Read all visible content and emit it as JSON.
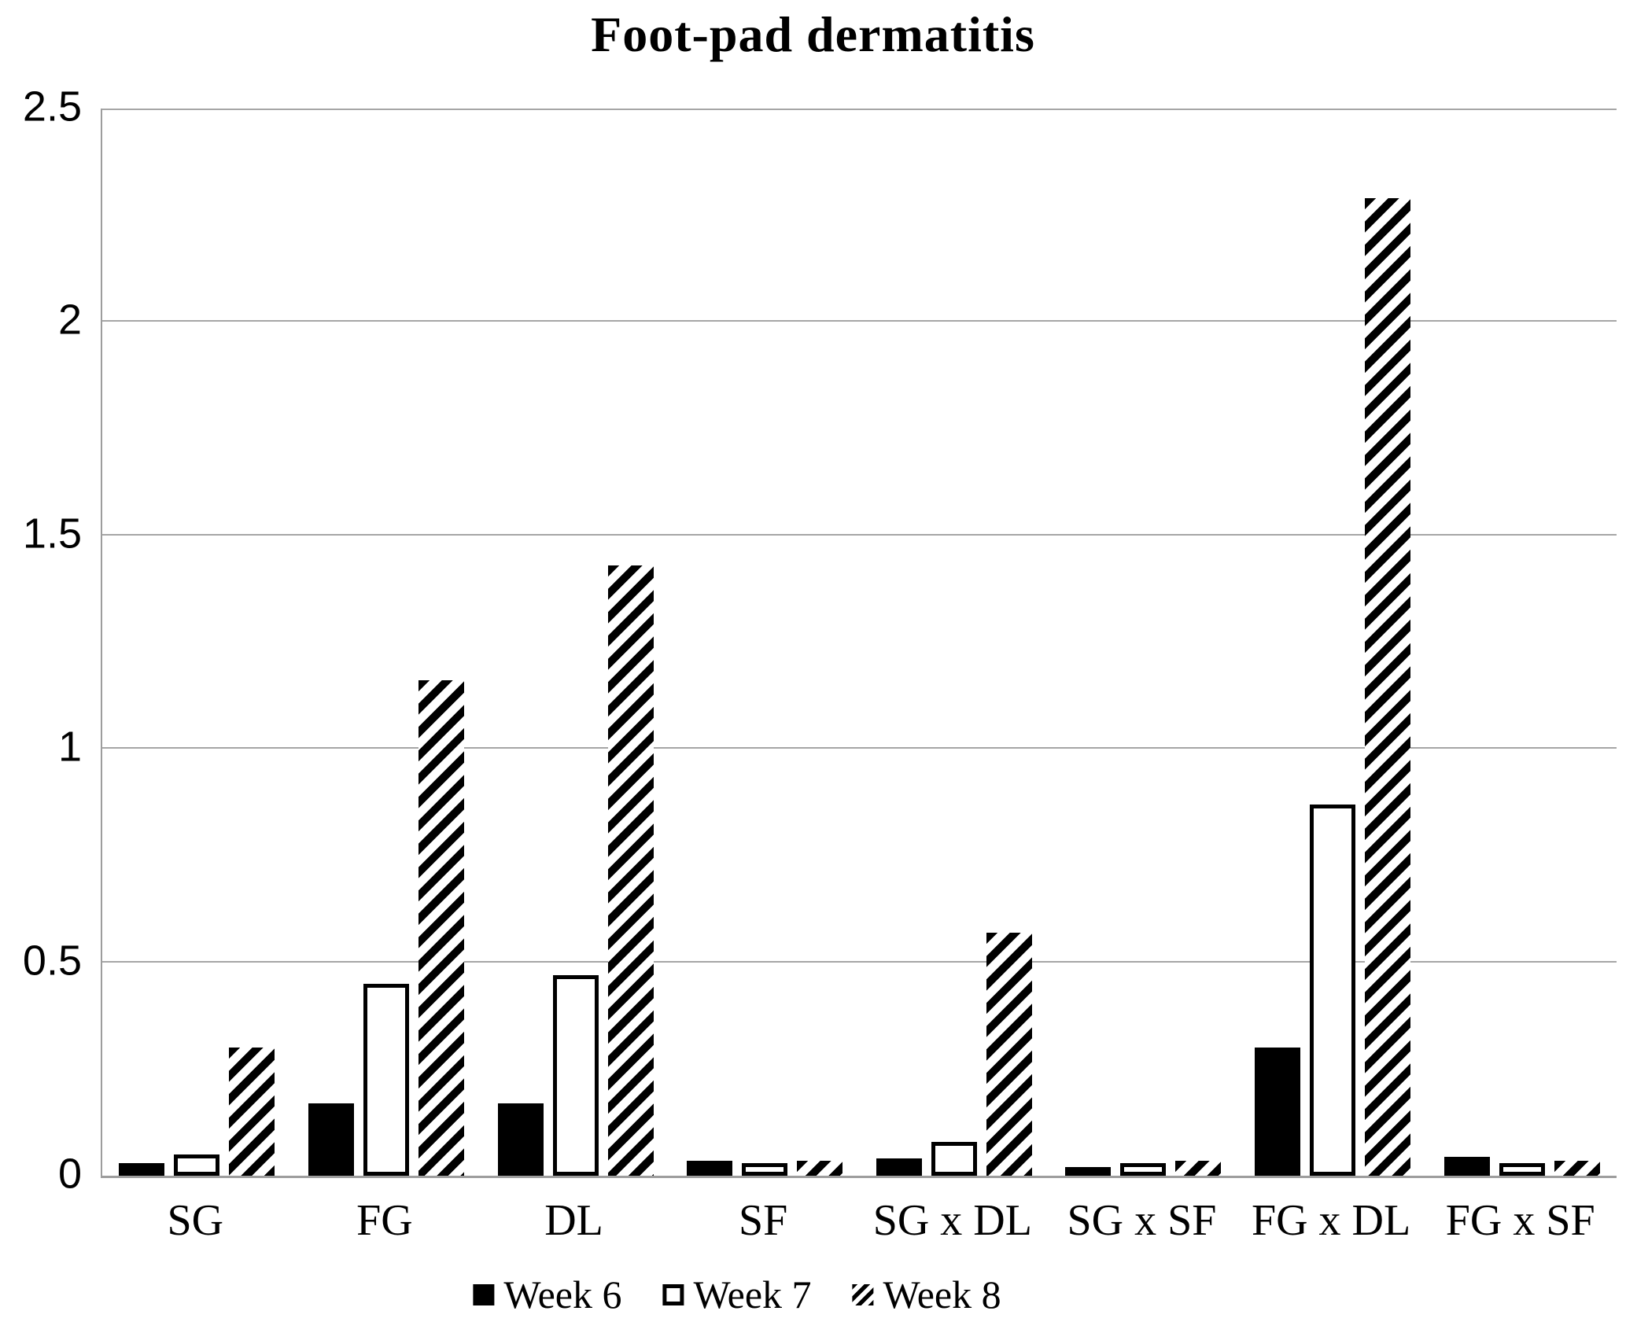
{
  "title": "Foot-pad dermatitis",
  "chart_data": {
    "type": "bar",
    "title": "Foot-pad dermatitis",
    "xlabel": "",
    "ylabel": "",
    "categories": [
      "SG",
      "FG",
      "DL",
      "SF",
      "SG x DL",
      "SG x SF",
      "FG x DL",
      "FG x SF"
    ],
    "series": [
      {
        "name": "Week 6",
        "pattern": "solid-black",
        "values": [
          0.03,
          0.17,
          0.17,
          0.035,
          0.04,
          0.02,
          0.3,
          0.045
        ]
      },
      {
        "name": "Week 7",
        "pattern": "white-outline",
        "values": [
          0.05,
          0.45,
          0.47,
          0.03,
          0.08,
          0.03,
          0.87,
          0.03
        ]
      },
      {
        "name": "Week 8",
        "pattern": "diagonal-hatch",
        "values": [
          0.3,
          1.16,
          1.43,
          0.035,
          0.57,
          0.035,
          2.29,
          0.035
        ]
      }
    ],
    "ylim": [
      0,
      2.5
    ],
    "yticks": [
      0,
      0.5,
      1,
      1.5,
      2,
      2.5
    ],
    "ytick_labels": [
      "0",
      "0.5",
      "1",
      "1.5",
      "2",
      "2.5"
    ],
    "grid": "horizontal",
    "legend_position": "bottom",
    "colors": {
      "bar_fill_black": "#000000",
      "bar_fill_white": "#ffffff",
      "hatch_stroke": "#000000",
      "gridline": "#a6a6a6",
      "axis_line": "#9d9d9d",
      "text": "#000000",
      "background": "#ffffff"
    }
  }
}
